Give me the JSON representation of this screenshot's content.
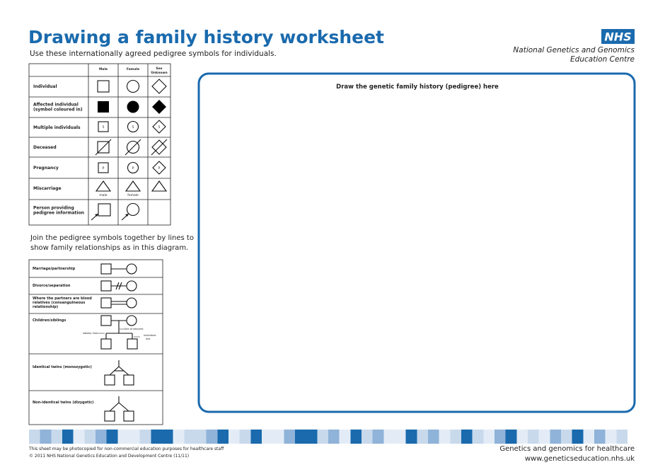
{
  "header": {
    "title": "Drawing a family history worksheet",
    "subtitle": "Use these internationally agreed pedigree symbols for individuals.",
    "logo": "NHS",
    "organisation": [
      "National Genetics and Genomics",
      "Education Centre"
    ]
  },
  "symbols_table": {
    "columns": [
      "Male",
      "Female",
      [
        "Sex",
        "Unknown"
      ]
    ],
    "rows": [
      {
        "label": [
          "Individual"
        ]
      },
      {
        "label": [
          "Affected individual",
          "(symbol coloured in)"
        ]
      },
      {
        "label": [
          "Multiple individuals"
        ],
        "mark": "5"
      },
      {
        "label": [
          "Deceased"
        ]
      },
      {
        "label": [
          "Pregnancy"
        ],
        "mark": "P"
      },
      {
        "label": [
          "Miscarriage"
        ],
        "notes": [
          "male",
          "female"
        ]
      },
      {
        "label": [
          "Person providing",
          "pedigree information"
        ]
      }
    ]
  },
  "relationships": {
    "intro": [
      "Join the pedigree symbols together by lines to",
      "show family relationships as in this diagram."
    ],
    "rows": [
      {
        "label": [
          "Marriage/partnership"
        ]
      },
      {
        "label": [
          "Divorce/separation"
        ]
      },
      {
        "label": [
          "Where the partners are blood",
          "relatives (consanguineous",
          "relationship)"
        ]
      },
      {
        "label": [
          "Children/siblings"
        ],
        "notes": [
          "line of descent",
          "sibship line",
          [
            "individual",
            "line"
          ]
        ]
      },
      {
        "label": [
          "Identical twins (monozygotic)"
        ]
      },
      {
        "label": [
          "Non-identical twins (dizygotic)"
        ]
      }
    ]
  },
  "drawing_area": {
    "label": "Draw the genetic family history (pedigree) here"
  },
  "footer": {
    "left": [
      "This sheet may be photocopied for non-commercial education purposes for healthcare staff",
      "© 2011 NHS National Genetics Education and Development Centre (11/11)"
    ],
    "right": [
      "Genetics and genomics for healthcare",
      "www.geneticseducation.nhs.uk"
    ]
  }
}
